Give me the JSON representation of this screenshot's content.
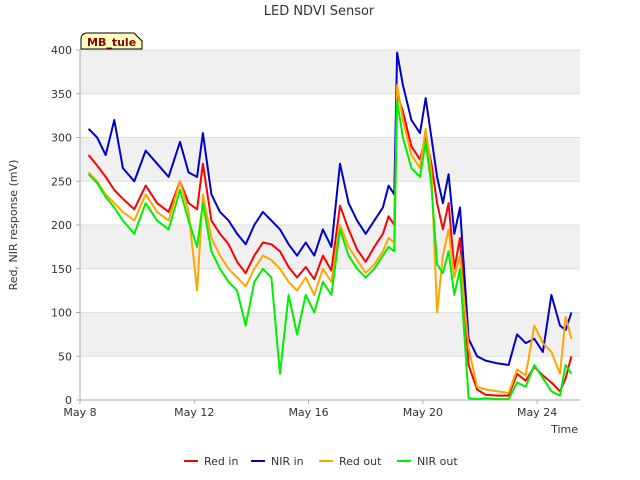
{
  "chart_data": {
    "type": "line",
    "title": "LED NDVI Sensor",
    "xlabel": "Time",
    "ylabel": "Red, NIR response (mV)",
    "site_label": "MB_tule",
    "xlim": [
      8,
      25.5
    ],
    "ylim": [
      0,
      400
    ],
    "x_ticks": [
      {
        "value": 8,
        "label": "May 8"
      },
      {
        "value": 12,
        "label": "May 12"
      },
      {
        "value": 16,
        "label": "May 16"
      },
      {
        "value": 20,
        "label": "May 20"
      },
      {
        "value": 24,
        "label": "May 24"
      }
    ],
    "y_ticks": [
      0,
      50,
      100,
      150,
      200,
      250,
      300,
      350,
      400
    ],
    "grid": true,
    "legend_position": "bottom",
    "colors": {
      "plot_band": "#f0f0f0",
      "grid": "#dddddd",
      "axis": "#aaaaaa",
      "site_label_bg": "#ffffc0"
    },
    "series": [
      {
        "name": "Red in",
        "color": "#ff0000",
        "x": [
          8.3,
          8.6,
          8.9,
          9.2,
          9.5,
          9.9,
          10.3,
          10.7,
          11.1,
          11.5,
          11.8,
          12.1,
          12.3,
          12.6,
          12.9,
          13.2,
          13.5,
          13.8,
          14.1,
          14.4,
          14.7,
          15.0,
          15.3,
          15.6,
          15.9,
          16.2,
          16.5,
          16.8,
          17.1,
          17.4,
          17.7,
          18.0,
          18.3,
          18.6,
          18.8,
          19.0,
          19.1,
          19.3,
          19.6,
          19.9,
          20.1,
          20.3,
          20.5,
          20.7,
          20.9,
          21.1,
          21.3,
          21.6,
          21.9,
          22.2,
          22.6,
          23.0,
          23.3,
          23.6,
          23.9,
          24.2,
          24.5,
          24.8,
          25.0,
          25.2
        ],
        "values": [
          280,
          268,
          255,
          240,
          230,
          218,
          245,
          225,
          215,
          250,
          225,
          218,
          270,
          205,
          190,
          178,
          158,
          145,
          165,
          180,
          178,
          170,
          152,
          140,
          152,
          138,
          165,
          148,
          222,
          195,
          172,
          158,
          175,
          190,
          210,
          200,
          350,
          330,
          290,
          275,
          300,
          270,
          225,
          195,
          225,
          150,
          185,
          40,
          12,
          6,
          5,
          5,
          30,
          22,
          38,
          28,
          20,
          10,
          25,
          50
        ]
      },
      {
        "name": "NIR in",
        "color": "#0000cc",
        "x": [
          8.3,
          8.6,
          8.9,
          9.2,
          9.5,
          9.9,
          10.3,
          10.7,
          11.1,
          11.5,
          11.8,
          12.1,
          12.3,
          12.6,
          12.9,
          13.2,
          13.5,
          13.8,
          14.1,
          14.4,
          14.7,
          15.0,
          15.3,
          15.6,
          15.9,
          16.2,
          16.5,
          16.8,
          17.1,
          17.4,
          17.7,
          18.0,
          18.3,
          18.6,
          18.8,
          19.0,
          19.1,
          19.3,
          19.6,
          19.9,
          20.1,
          20.3,
          20.5,
          20.7,
          20.9,
          21.1,
          21.3,
          21.6,
          21.9,
          22.2,
          22.6,
          23.0,
          23.3,
          23.6,
          23.9,
          24.2,
          24.5,
          24.8,
          25.0,
          25.2
        ],
        "values": [
          310,
          300,
          280,
          320,
          265,
          250,
          285,
          270,
          255,
          295,
          260,
          255,
          305,
          235,
          215,
          205,
          190,
          178,
          200,
          215,
          205,
          195,
          178,
          165,
          180,
          165,
          195,
          175,
          270,
          225,
          205,
          190,
          205,
          220,
          245,
          235,
          397,
          360,
          320,
          305,
          345,
          300,
          255,
          225,
          258,
          190,
          220,
          70,
          50,
          45,
          42,
          40,
          75,
          65,
          70,
          55,
          120,
          85,
          80,
          100
        ]
      },
      {
        "name": "Red out",
        "color": "#ffa500",
        "x": [
          8.3,
          8.6,
          8.9,
          9.2,
          9.5,
          9.9,
          10.3,
          10.7,
          11.1,
          11.5,
          11.8,
          12.1,
          12.3,
          12.6,
          12.9,
          13.2,
          13.5,
          13.8,
          14.1,
          14.4,
          14.7,
          15.0,
          15.3,
          15.6,
          15.9,
          16.2,
          16.5,
          16.8,
          17.1,
          17.4,
          17.7,
          18.0,
          18.3,
          18.6,
          18.8,
          19.0,
          19.1,
          19.3,
          19.6,
          19.9,
          20.1,
          20.3,
          20.5,
          20.7,
          20.9,
          21.1,
          21.3,
          21.6,
          21.9,
          22.2,
          22.6,
          23.0,
          23.3,
          23.6,
          23.9,
          24.2,
          24.5,
          24.8,
          25.0,
          25.2
        ],
        "values": [
          260,
          250,
          235,
          225,
          215,
          205,
          235,
          215,
          205,
          250,
          215,
          125,
          235,
          185,
          165,
          150,
          140,
          130,
          150,
          165,
          160,
          150,
          135,
          125,
          140,
          120,
          150,
          135,
          200,
          175,
          160,
          145,
          155,
          170,
          185,
          180,
          360,
          320,
          280,
          265,
          310,
          260,
          100,
          165,
          195,
          140,
          165,
          60,
          15,
          12,
          10,
          8,
          35,
          28,
          85,
          65,
          55,
          30,
          95,
          70
        ]
      },
      {
        "name": "NIR out",
        "color": "#00ee00",
        "x": [
          8.3,
          8.6,
          8.9,
          9.2,
          9.5,
          9.9,
          10.3,
          10.7,
          11.1,
          11.5,
          11.8,
          12.1,
          12.3,
          12.6,
          12.9,
          13.2,
          13.5,
          13.8,
          14.1,
          14.4,
          14.7,
          15.0,
          15.3,
          15.6,
          15.9,
          16.2,
          16.5,
          16.8,
          17.1,
          17.4,
          17.7,
          18.0,
          18.3,
          18.6,
          18.8,
          19.0,
          19.1,
          19.3,
          19.6,
          19.9,
          20.1,
          20.3,
          20.5,
          20.7,
          20.9,
          21.1,
          21.3,
          21.6,
          21.9,
          22.2,
          22.6,
          23.0,
          23.3,
          23.6,
          23.9,
          24.2,
          24.5,
          24.8,
          25.0,
          25.2
        ],
        "values": [
          258,
          248,
          232,
          220,
          205,
          190,
          225,
          205,
          195,
          240,
          205,
          175,
          225,
          170,
          150,
          135,
          125,
          85,
          135,
          150,
          140,
          30,
          120,
          75,
          120,
          100,
          135,
          120,
          195,
          165,
          150,
          140,
          150,
          165,
          175,
          170,
          342,
          300,
          265,
          255,
          295,
          245,
          155,
          145,
          170,
          120,
          150,
          2,
          1,
          2,
          1,
          1,
          20,
          15,
          40,
          25,
          10,
          5,
          40,
          30
        ]
      }
    ]
  }
}
